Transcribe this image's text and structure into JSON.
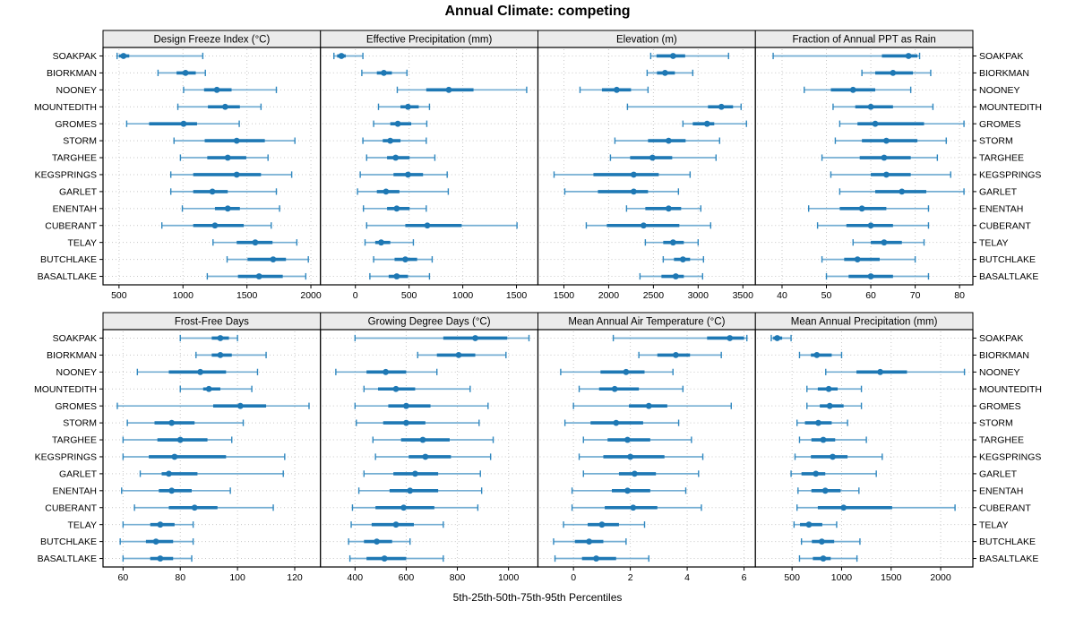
{
  "title": "Annual Climate: competing",
  "caption": "5th-25th-50th-75th-95th Percentiles",
  "sites": [
    "SOAKPAK",
    "BIORKMAN",
    "NOONEY",
    "MOUNTEDITH",
    "GROMES",
    "STORM",
    "TARGHEE",
    "KEGSPRINGS",
    "GARLET",
    "ENENTAH",
    "CUBERANT",
    "TELAY",
    "BUTCHLAKE",
    "BASALTLAKE"
  ],
  "style": {
    "accent": "#1e78b4",
    "whisker": "#74aed3",
    "cap": "#2f87bf",
    "grid": "#c8c8c8",
    "strip_bg": "#ebebeb",
    "border": "#000000"
  },
  "chart_data": [
    {
      "type": "percentile_intervals",
      "title": "Design Freeze Index (°C)",
      "row": 0,
      "col": 0,
      "xlim": [
        375,
        2075
      ],
      "ticks": [
        500,
        1000,
        1500,
        2000
      ],
      "percentile_labels": [
        "p5",
        "p25",
        "p50",
        "p75",
        "p95"
      ],
      "values": [
        [
          485,
          500,
          535,
          580,
          1155
        ],
        [
          805,
          950,
          1020,
          1100,
          1175
        ],
        [
          1005,
          1165,
          1265,
          1380,
          1730
        ],
        [
          960,
          1195,
          1330,
          1445,
          1610
        ],
        [
          560,
          735,
          1005,
          1110,
          1440
        ],
        [
          930,
          1170,
          1420,
          1640,
          1875
        ],
        [
          980,
          1190,
          1350,
          1495,
          1665
        ],
        [
          905,
          1080,
          1420,
          1610,
          1850
        ],
        [
          905,
          1080,
          1230,
          1350,
          1730
        ],
        [
          995,
          1250,
          1350,
          1445,
          1755
        ],
        [
          835,
          1080,
          1250,
          1475,
          1690
        ],
        [
          1235,
          1420,
          1565,
          1700,
          1890
        ],
        [
          1345,
          1505,
          1705,
          1805,
          1980
        ],
        [
          1190,
          1430,
          1595,
          1780,
          1960
        ]
      ]
    },
    {
      "type": "percentile_intervals",
      "title": "Effective Precipitation (mm)",
      "row": 0,
      "col": 1,
      "xlim": [
        -325,
        1700
      ],
      "ticks": [
        0,
        500,
        1000,
        1500
      ],
      "percentile_labels": [
        "p5",
        "p25",
        "p50",
        "p75",
        "p95"
      ],
      "values": [
        [
          -200,
          -170,
          -130,
          -90,
          70
        ],
        [
          60,
          200,
          265,
          340,
          480
        ],
        [
          390,
          660,
          870,
          1100,
          1595
        ],
        [
          215,
          420,
          490,
          590,
          690
        ],
        [
          170,
          325,
          395,
          520,
          665
        ],
        [
          70,
          255,
          325,
          420,
          660
        ],
        [
          105,
          295,
          375,
          505,
          740
        ],
        [
          45,
          355,
          490,
          630,
          855
        ],
        [
          20,
          200,
          285,
          410,
          865
        ],
        [
          75,
          295,
          385,
          505,
          660
        ],
        [
          105,
          465,
          670,
          990,
          1505
        ],
        [
          90,
          185,
          240,
          325,
          540
        ],
        [
          170,
          365,
          465,
          575,
          715
        ],
        [
          135,
          310,
          385,
          490,
          690
        ]
      ]
    },
    {
      "type": "percentile_intervals",
      "title": "Elevation (m)",
      "row": 0,
      "col": 2,
      "xlim": [
        1210,
        3640
      ],
      "ticks": [
        1500,
        2000,
        2500,
        3000,
        3500
      ],
      "percentile_labels": [
        "p5",
        "p25",
        "p50",
        "p75",
        "p95"
      ],
      "values": [
        [
          2470,
          2535,
          2720,
          2855,
          3340
        ],
        [
          2430,
          2540,
          2630,
          2740,
          2940
        ],
        [
          1680,
          1925,
          2090,
          2250,
          2440
        ],
        [
          2210,
          3110,
          3260,
          3390,
          3480
        ],
        [
          2830,
          2940,
          3100,
          3180,
          3540
        ],
        [
          2070,
          2440,
          2670,
          2860,
          3240
        ],
        [
          2020,
          2240,
          2490,
          2710,
          3200
        ],
        [
          1390,
          1830,
          2280,
          2560,
          2910
        ],
        [
          1510,
          1880,
          2280,
          2440,
          2780
        ],
        [
          2200,
          2410,
          2670,
          2810,
          3030
        ],
        [
          1750,
          1980,
          2390,
          2790,
          3140
        ],
        [
          2410,
          2610,
          2720,
          2840,
          3000
        ],
        [
          2610,
          2730,
          2830,
          2910,
          3060
        ],
        [
          2350,
          2590,
          2750,
          2840,
          3050
        ]
      ]
    },
    {
      "type": "percentile_intervals",
      "title": "Fraction of Annual PPT as Rain",
      "row": 0,
      "col": 3,
      "xlim": [
        34,
        83
      ],
      "ticks": [
        40,
        50,
        60,
        70,
        80
      ],
      "percentile_labels": [
        "p5",
        "p25",
        "p50",
        "p75",
        "p95"
      ],
      "values": [
        [
          38,
          62.5,
          68.5,
          70.5,
          71
        ],
        [
          58,
          61,
          65,
          69.5,
          73.5
        ],
        [
          45,
          51,
          56,
          61,
          69
        ],
        [
          51.5,
          56.5,
          60,
          65,
          74
        ],
        [
          53,
          57,
          61,
          72,
          81
        ],
        [
          52,
          58,
          63.5,
          70.5,
          77
        ],
        [
          49,
          57.5,
          63,
          69,
          75
        ],
        [
          51,
          60,
          63.5,
          69,
          78
        ],
        [
          53,
          61,
          67,
          72.5,
          81
        ],
        [
          46,
          53,
          58,
          63.5,
          73
        ],
        [
          48,
          54.5,
          60,
          65,
          73
        ],
        [
          56,
          60,
          63,
          67,
          72
        ],
        [
          49,
          54,
          57,
          62,
          70
        ],
        [
          50,
          55,
          60,
          65,
          73
        ]
      ]
    },
    {
      "type": "percentile_intervals",
      "title": "Frost-Free Days",
      "row": 1,
      "col": 0,
      "xlim": [
        53,
        129
      ],
      "ticks": [
        60,
        80,
        100,
        120
      ],
      "percentile_labels": [
        "p5",
        "p25",
        "p50",
        "p75",
        "p95"
      ],
      "values": [
        [
          80,
          91,
          94,
          97,
          100
        ],
        [
          85.5,
          91,
          94,
          98,
          110
        ],
        [
          65,
          76,
          87,
          96,
          107
        ],
        [
          80,
          88,
          90,
          94,
          105
        ],
        [
          58,
          91.5,
          101,
          110,
          125
        ],
        [
          61.5,
          71,
          77,
          85,
          102
        ],
        [
          60,
          72,
          80,
          89.5,
          98
        ],
        [
          60,
          69,
          78,
          96,
          116.5
        ],
        [
          66,
          73.5,
          76,
          86,
          116
        ],
        [
          59.5,
          72.5,
          77,
          84,
          97.5
        ],
        [
          64,
          76,
          85,
          93,
          112.5
        ],
        [
          60,
          69.5,
          73,
          78,
          84.5
        ],
        [
          59,
          68,
          71.5,
          77.5,
          84.5
        ],
        [
          60,
          69.5,
          73,
          77.5,
          84
        ]
      ]
    },
    {
      "type": "percentile_intervals",
      "title": "Growing Degree Days (°C)",
      "row": 1,
      "col": 1,
      "xlim": [
        265,
        1115
      ],
      "ticks": [
        400,
        600,
        800,
        1000
      ],
      "percentile_labels": [
        "p5",
        "p25",
        "p50",
        "p75",
        "p95"
      ],
      "values": [
        [
          400,
          745,
          870,
          995,
          1080
        ],
        [
          645,
          720,
          805,
          870,
          990
        ],
        [
          325,
          445,
          520,
          600,
          720
        ],
        [
          435,
          490,
          560,
          635,
          850
        ],
        [
          400,
          530,
          600,
          695,
          920
        ],
        [
          405,
          510,
          600,
          675,
          885
        ],
        [
          470,
          580,
          665,
          770,
          940
        ],
        [
          480,
          610,
          675,
          775,
          930
        ],
        [
          435,
          550,
          635,
          725,
          890
        ],
        [
          415,
          535,
          615,
          725,
          895
        ],
        [
          390,
          480,
          590,
          710,
          880
        ],
        [
          385,
          465,
          560,
          630,
          745
        ],
        [
          375,
          435,
          485,
          545,
          615
        ],
        [
          380,
          445,
          515,
          600,
          745
        ]
      ]
    },
    {
      "type": "percentile_intervals",
      "title": "Mean Annual Air Temperature (°C)",
      "row": 1,
      "col": 2,
      "xlim": [
        -1.25,
        6.4
      ],
      "ticks": [
        0,
        2,
        4,
        6
      ],
      "percentile_labels": [
        "p5",
        "p25",
        "p50",
        "p75",
        "p95"
      ],
      "values": [
        [
          1.4,
          4.7,
          5.5,
          6.0,
          6.1
        ],
        [
          2.3,
          2.95,
          3.6,
          4.1,
          5.2
        ],
        [
          -0.45,
          0.95,
          1.85,
          2.5,
          3.5
        ],
        [
          0.2,
          0.9,
          1.45,
          2.3,
          3.85
        ],
        [
          0.0,
          1.95,
          2.65,
          3.3,
          5.55
        ],
        [
          -0.3,
          0.6,
          1.5,
          2.45,
          3.7
        ],
        [
          0.35,
          1.2,
          1.9,
          2.7,
          4.15
        ],
        [
          0.2,
          1.05,
          2.0,
          3.2,
          4.55
        ],
        [
          0.35,
          1.6,
          2.15,
          2.9,
          4.4
        ],
        [
          -0.05,
          1.35,
          1.9,
          2.7,
          3.95
        ],
        [
          -0.05,
          1.1,
          2.1,
          2.95,
          4.5
        ],
        [
          -0.35,
          0.5,
          1.0,
          1.6,
          2.5
        ],
        [
          -0.7,
          0.05,
          0.55,
          1.05,
          1.85
        ],
        [
          -0.65,
          0.3,
          0.8,
          1.5,
          2.65
        ]
      ]
    },
    {
      "type": "percentile_intervals",
      "title": "Mean Annual Precipitation (mm)",
      "row": 1,
      "col": 3,
      "xlim": [
        130,
        2325
      ],
      "ticks": [
        500,
        1000,
        1500,
        2000
      ],
      "percentile_labels": [
        "p5",
        "p25",
        "p50",
        "p75",
        "p95"
      ],
      "values": [
        [
          290,
          310,
          350,
          400,
          490
        ],
        [
          575,
          690,
          750,
          900,
          1000
        ],
        [
          840,
          1150,
          1390,
          1660,
          2240
        ],
        [
          650,
          760,
          870,
          960,
          1200
        ],
        [
          650,
          780,
          880,
          1020,
          1200
        ],
        [
          550,
          630,
          765,
          900,
          1060
        ],
        [
          575,
          695,
          815,
          935,
          1250
        ],
        [
          530,
          690,
          910,
          1060,
          1410
        ],
        [
          490,
          595,
          740,
          835,
          1350
        ],
        [
          560,
          695,
          835,
          990,
          1175
        ],
        [
          550,
          760,
          1020,
          1510,
          2145
        ],
        [
          520,
          580,
          670,
          805,
          950
        ],
        [
          595,
          700,
          800,
          925,
          1185
        ],
        [
          575,
          710,
          815,
          890,
          1155
        ]
      ]
    }
  ]
}
